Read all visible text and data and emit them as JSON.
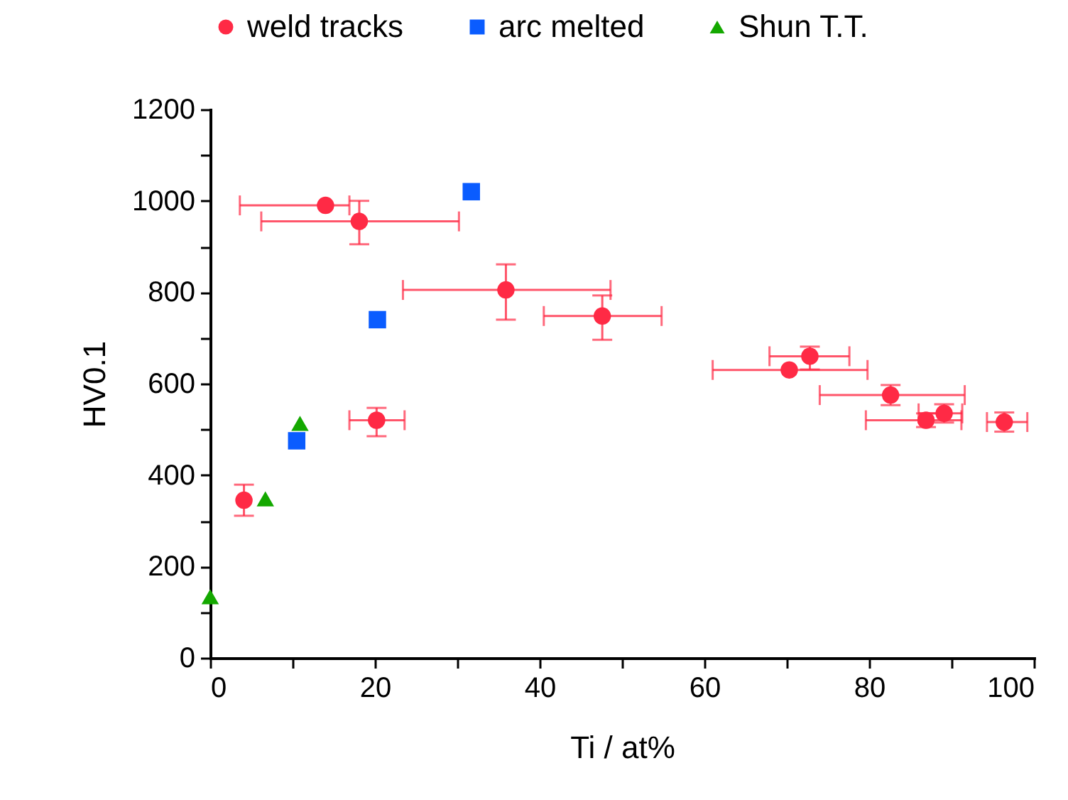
{
  "chart_data": {
    "type": "scatter",
    "xlabel": "Ti / at%",
    "ylabel": "HV0.1",
    "xlim": [
      0,
      100
    ],
    "ylim": [
      0,
      1200
    ],
    "xticks": [
      0,
      {
        "value": 10,
        "label": null
      },
      20,
      {
        "value": 30,
        "label": null
      },
      40,
      {
        "value": 50,
        "label": null
      },
      60,
      {
        "value": 70,
        "label": null
      },
      80,
      {
        "value": 90,
        "label": null
      },
      100
    ],
    "yticks": [
      0,
      {
        "value": 100,
        "label": null
      },
      200,
      {
        "value": 300,
        "label": null
      },
      400,
      {
        "value": 500,
        "label": null
      },
      600,
      {
        "value": 700,
        "label": null
      },
      800,
      {
        "value": 900,
        "label": null
      },
      1000,
      {
        "value": 1100,
        "label": null
      },
      1200
    ],
    "grid": false,
    "legend": "top",
    "series": [
      {
        "name": "weld tracks",
        "color": "#ff2a45",
        "marker": "circle",
        "x": [
          14.0,
          18.1,
          35.9,
          47.6,
          20.2,
          4.1,
          70.3,
          72.8,
          82.6,
          86.9,
          89.1,
          96.4
        ],
        "values": [
          990,
          955,
          805,
          748,
          520,
          345,
          630,
          660,
          575,
          520,
          535,
          516
        ],
        "errors": [
          null,
          [
            905,
            1000
          ],
          [
            740,
            861
          ],
          [
            696,
            793
          ],
          [
            485,
            547
          ],
          [
            311,
            379
          ],
          null,
          [
            631,
            681
          ],
          [
            553,
            597
          ],
          [
            505,
            535
          ],
          [
            515,
            555
          ],
          [
            495,
            537
          ]
        ],
        "xerrors": [
          [
            3.6,
            16.9
          ],
          [
            6.2,
            30.2
          ],
          [
            23.4,
            48.6
          ],
          [
            40.5,
            54.8
          ],
          [
            16.9,
            23.6
          ],
          null,
          [
            61.0,
            79.8
          ],
          [
            67.9,
            77.6
          ],
          [
            74.0,
            91.6
          ],
          [
            79.6,
            91.2
          ],
          [
            86.0,
            91.3
          ],
          [
            94.3,
            99.2
          ]
        ]
      },
      {
        "name": "arc melted",
        "color": "#0a5cff",
        "marker": "square",
        "x": [
          10.5,
          20.3,
          31.7
        ],
        "values": [
          475,
          740,
          1020
        ]
      },
      {
        "name": "Shun T.T.",
        "color": "#14a800",
        "marker": "triangle",
        "x": [
          0,
          6.7,
          10.9
        ],
        "values": [
          134,
          348,
          513
        ]
      }
    ]
  }
}
